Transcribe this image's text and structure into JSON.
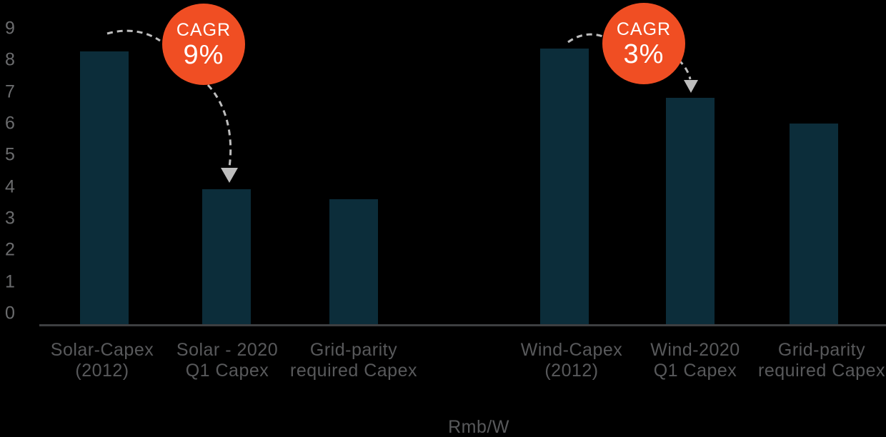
{
  "chart_data": {
    "type": "bar",
    "title": "",
    "xlabel": "",
    "ylabel": "",
    "unit_label": "Rmb/W",
    "ylim": [
      0,
      9
    ],
    "yticks": [
      0,
      1,
      2,
      3,
      4,
      5,
      6,
      7,
      8,
      9
    ],
    "grid": false,
    "legend": "none",
    "bars": [
      {
        "group": "Solar",
        "label_line1": "Solar-Capex",
        "label_line2": "(2012)",
        "value": 8.3
      },
      {
        "group": "Solar",
        "label_line1": "Solar - 2020",
        "label_line2": "Q1 Capex",
        "value": 4.1
      },
      {
        "group": "Solar",
        "label_line1": "Grid-parity",
        "label_line2": "required Capex",
        "value": 3.8
      },
      {
        "group": "Wind",
        "label_line1": "Wind-Capex",
        "label_line2": "(2012)",
        "value": 8.4
      },
      {
        "group": "Wind",
        "label_line1": "Wind-2020",
        "label_line2": "Q1 Capex",
        "value": 6.9
      },
      {
        "group": "Wind",
        "label_line1": "Grid-parity",
        "label_line2": "required Capex",
        "value": 6.1
      }
    ],
    "annotations": [
      {
        "label": "CAGR",
        "value": "9%",
        "applies_to": "Solar 2012 to 2020 Q1 decline"
      },
      {
        "label": "CAGR",
        "value": "3%",
        "applies_to": "Wind 2012 to 2020 Q1 decline"
      }
    ],
    "colors": {
      "background": "#000000",
      "bar": "#0c2d3a",
      "badge": "#f04e23",
      "badge_text": "#ffffff",
      "axis_text": "#6b6c6e",
      "label_text": "#58595b",
      "axis_line": "#3e3f41",
      "arrow": "#bdbdbd"
    }
  }
}
